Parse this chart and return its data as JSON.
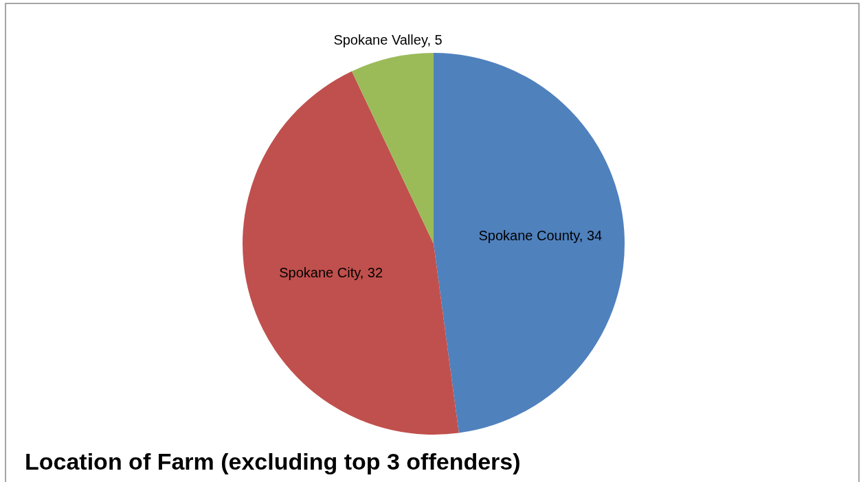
{
  "chart_data": {
    "type": "pie",
    "title": "Location of Farm (excluding top 3 offenders)",
    "categories": [
      "Spokane County, 34",
      "Spokane City, 32",
      "Spokane Valley, 5"
    ],
    "values": [
      34,
      32,
      5
    ],
    "colors": [
      "#4f81bd",
      "#c0504d",
      "#9bbb59"
    ],
    "legend": false
  }
}
